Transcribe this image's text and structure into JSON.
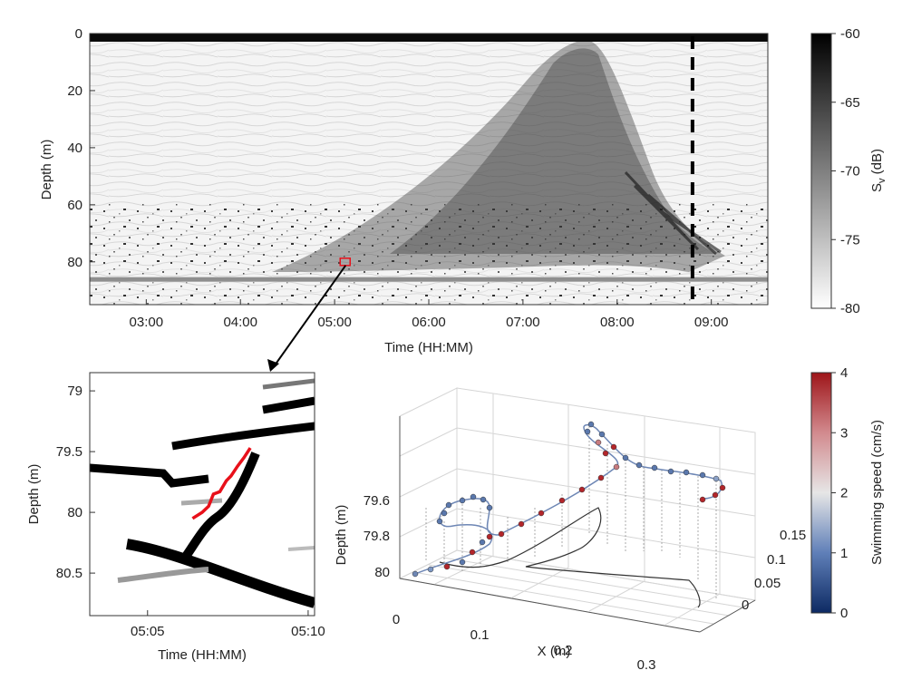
{
  "chart_data": [
    {
      "type": "heatmap",
      "panel": "echogram",
      "xlabel": "Time (HH:MM)",
      "ylabel": "Depth (m)",
      "x_ticks": [
        "03:00",
        "04:00",
        "05:00",
        "06:00",
        "07:00",
        "08:00",
        "09:00"
      ],
      "y_ticks": [
        "0",
        "20",
        "40",
        "60",
        "80"
      ],
      "xlim_hours": [
        2.4,
        9.6
      ],
      "ylim": [
        0,
        95
      ],
      "y_reversed": true,
      "seabed_depth": 86,
      "dashed_line_time": "08:48",
      "highlight_box": {
        "time": "05:07",
        "depth": 80
      },
      "colorbar": {
        "label_main": "S",
        "label_sub": "v",
        "label_unit": " (dB)",
        "ticks": [
          "-60",
          "-65",
          "-70",
          "-75",
          "-80"
        ],
        "range": [
          -80,
          -60
        ],
        "colors": [
          "#ffffff",
          "#000000"
        ]
      }
    },
    {
      "type": "line",
      "panel": "zoom",
      "xlabel": "Time (HH:MM)",
      "ylabel": "Depth (m)",
      "x_ticks": [
        "05:05",
        "05:10"
      ],
      "y_ticks": [
        "79",
        "79.5",
        "80",
        "80.5"
      ],
      "xlim_minutes": [
        3.2,
        10.2
      ],
      "ylim": [
        78.85,
        80.85
      ],
      "y_reversed": true,
      "track_color": "#e8101a",
      "track": [
        [
          6.4,
          80.05
        ],
        [
          6.7,
          80.0
        ],
        [
          6.9,
          79.95
        ],
        [
          7.05,
          79.85
        ],
        [
          7.25,
          79.83
        ],
        [
          7.45,
          79.74
        ],
        [
          7.6,
          79.7
        ],
        [
          7.8,
          79.62
        ],
        [
          8.0,
          79.55
        ],
        [
          8.2,
          79.47
        ]
      ]
    },
    {
      "type": "scatter",
      "panel": "trajectory-3d",
      "xlabel": "X (m)",
      "zlabel": "Depth (m)",
      "x_ticks": [
        "0",
        "0.1",
        "0.2",
        "0.3"
      ],
      "y_ticks": [
        "0",
        "0.05",
        "0.1",
        "0.15"
      ],
      "z_ticks": [
        "79.6",
        "79.8",
        "80"
      ],
      "colorbar": {
        "label": "Swimming speed (cm/s)",
        "ticks": [
          "0",
          "1",
          "2",
          "3",
          "4"
        ],
        "range": [
          0,
          4
        ],
        "colors": [
          "#0d2a63",
          "#5f7fb8",
          "#e6e6e6",
          "#d28a8e",
          "#9e1519"
        ]
      }
    }
  ]
}
